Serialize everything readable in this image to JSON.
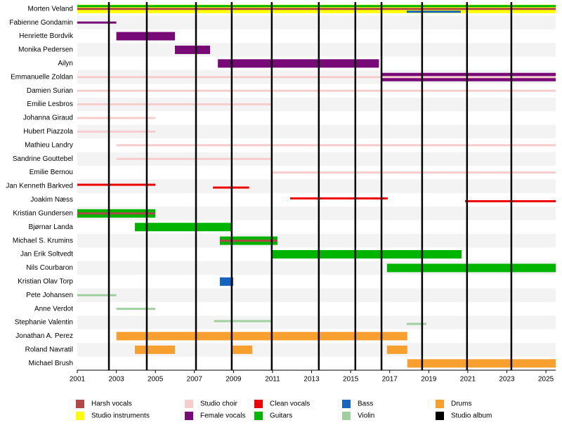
{
  "chart_data": {
    "type": "timeline",
    "xlim": [
      2001,
      2025.5
    ],
    "xticks": [
      2001,
      2003,
      2005,
      2007,
      2009,
      2011,
      2013,
      2015,
      2017,
      2019,
      2021,
      2023,
      2025
    ],
    "roles": [
      {
        "name": "Harsh vocals",
        "color": "#b04848"
      },
      {
        "name": "Studio instruments",
        "color": "#ffff00"
      },
      {
        "name": "Studio choir",
        "color": "#f7cccc"
      },
      {
        "name": "Female vocals",
        "color": "#770a77"
      },
      {
        "name": "Clean vocals",
        "color": "#ee0000"
      },
      {
        "name": "Guitars",
        "color": "#00b400"
      },
      {
        "name": "Bass",
        "color": "#1464c0"
      },
      {
        "name": "Violin",
        "color": "#a0d0a0"
      },
      {
        "name": "Drums",
        "color": "#f7a030"
      },
      {
        "name": "Studio album",
        "color": "#000000"
      }
    ],
    "albums": [
      2002.62,
      2004.56,
      2007.08,
      2008.91,
      2010.96,
      2013.37,
      2015.24,
      2016.58,
      2018.66,
      2020.96,
      2023.23
    ],
    "members": [
      {
        "name": "Morten Veland",
        "spans": [
          {
            "role": 1,
            "start": 2001,
            "end": 2025.5
          },
          {
            "role": 5,
            "start": 2001,
            "end": 2025.5,
            "thin": true
          },
          {
            "role": 0,
            "start": 2001,
            "end": 2025.5,
            "thin": true
          },
          {
            "role": 6,
            "start": 2017.87,
            "end": 2020.64,
            "thin": true
          }
        ]
      },
      {
        "name": "Fabienne Gondamin",
        "spans": [
          {
            "role": 3,
            "start": 2001,
            "end": 2003,
            "thin": true
          }
        ]
      },
      {
        "name": "Henriette Bordvik",
        "spans": [
          {
            "role": 3,
            "start": 2003,
            "end": 2006
          }
        ]
      },
      {
        "name": "Monika Pedersen",
        "spans": [
          {
            "role": 3,
            "start": 2006,
            "end": 2007.8
          }
        ]
      },
      {
        "name": "Ailyn",
        "spans": [
          {
            "role": 3,
            "start": 2008.2,
            "end": 2016.45
          }
        ]
      },
      {
        "name": "Emmanuelle Zoldan",
        "spans": [
          {
            "role": 3,
            "start": 2016.6,
            "end": 2025.5
          },
          {
            "role": 2,
            "start": 2001,
            "end": 2025.5,
            "thin": true
          }
        ]
      },
      {
        "name": "Damien Surian",
        "spans": [
          {
            "role": 2,
            "start": 2001,
            "end": 2025.5,
            "thin": true
          }
        ]
      },
      {
        "name": "Emilie Lesbros",
        "spans": [
          {
            "role": 2,
            "start": 2001,
            "end": 2011,
            "thin": true
          }
        ]
      },
      {
        "name": "Johanna Giraud",
        "spans": [
          {
            "role": 2,
            "start": 2001,
            "end": 2005,
            "thin": true
          }
        ]
      },
      {
        "name": "Hubert Piazzola",
        "spans": [
          {
            "role": 2,
            "start": 2001,
            "end": 2005,
            "thin": true
          }
        ]
      },
      {
        "name": "Mathieu Landry",
        "spans": [
          {
            "role": 2,
            "start": 2003,
            "end": 2025.5,
            "thin": true
          }
        ]
      },
      {
        "name": "Sandrine Gouttebel",
        "spans": [
          {
            "role": 2,
            "start": 2003,
            "end": 2011,
            "thin": true
          }
        ]
      },
      {
        "name": "Emilie Bernou",
        "spans": [
          {
            "role": 2,
            "start": 2011,
            "end": 2025.5,
            "thin": true
          }
        ]
      },
      {
        "name": "Jan Kenneth Barkved",
        "spans": [
          {
            "role": 4,
            "start": 2001,
            "end": 2005,
            "thin": true
          },
          {
            "role": 4,
            "start": 2007.95,
            "end": 2009.8,
            "thin": true
          }
        ]
      },
      {
        "name": "Joakim Næss",
        "spans": [
          {
            "role": 4,
            "start": 2011.9,
            "end": 2016.9,
            "thin": true
          },
          {
            "role": 4,
            "start": 2020.86,
            "end": 2025.5,
            "thin": true
          }
        ]
      },
      {
        "name": "Kristian Gundersen",
        "spans": [
          {
            "role": 5,
            "start": 2001,
            "end": 2005
          },
          {
            "role": 0,
            "start": 2001,
            "end": 2005,
            "thin": true
          }
        ]
      },
      {
        "name": "Bjørnar Landa",
        "spans": [
          {
            "role": 5,
            "start": 2003.95,
            "end": 2008.95
          }
        ]
      },
      {
        "name": "Michael S. Krumins",
        "spans": [
          {
            "role": 5,
            "start": 2008.3,
            "end": 2011.25
          },
          {
            "role": 0,
            "start": 2008.3,
            "end": 2011.25,
            "thin": true
          }
        ]
      },
      {
        "name": "Jan Erik Soltvedt",
        "spans": [
          {
            "role": 5,
            "start": 2011,
            "end": 2020.68
          }
        ]
      },
      {
        "name": "Nils Courbaron",
        "spans": [
          {
            "role": 5,
            "start": 2016.86,
            "end": 2025.5
          }
        ]
      },
      {
        "name": "Kristian Olav Torp",
        "spans": [
          {
            "role": 6,
            "start": 2008.3,
            "end": 2008.99
          }
        ]
      },
      {
        "name": "Pete Johansen",
        "spans": [
          {
            "role": 7,
            "start": 2001,
            "end": 2003,
            "thin": true
          }
        ]
      },
      {
        "name": "Anne Verdot",
        "spans": [
          {
            "role": 7,
            "start": 2003,
            "end": 2005,
            "thin": true
          }
        ]
      },
      {
        "name": "Stephanie Valentin",
        "spans": [
          {
            "role": 7,
            "start": 2008,
            "end": 2011,
            "thin": true
          },
          {
            "role": 7,
            "start": 2017.87,
            "end": 2018.88,
            "thin": true
          }
        ]
      },
      {
        "name": "Jonathan A. Perez",
        "spans": [
          {
            "role": 8,
            "start": 2003,
            "end": 2017.9
          }
        ]
      },
      {
        "name": "Roland Navratil",
        "spans": [
          {
            "role": 8,
            "start": 2003.95,
            "end": 2006
          },
          {
            "role": 8,
            "start": 2008.9,
            "end": 2009.96
          },
          {
            "role": 8,
            "start": 2016.86,
            "end": 2017.9
          }
        ]
      },
      {
        "name": "Michael Brush",
        "spans": [
          {
            "role": 8,
            "start": 2017.9,
            "end": 2025.5
          }
        ]
      }
    ]
  }
}
